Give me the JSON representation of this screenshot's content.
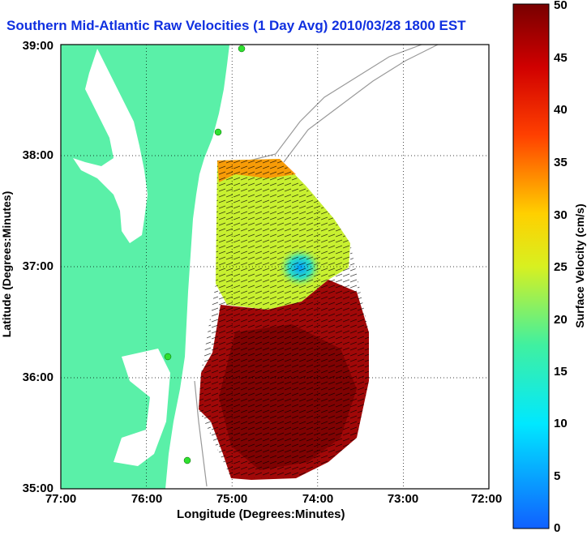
{
  "title": "Southern Mid-Atlantic Raw Velocities (1 Day Avg) 2010/03/28 1800 EST",
  "axes": {
    "xlabel": "Longitude (Degrees:Minutes)",
    "ylabel": "Latitude (Degrees:Minutes)",
    "xticks": [
      "77:00",
      "76:00",
      "75:00",
      "74:00",
      "73:00",
      "72:00"
    ],
    "yticks": [
      "39:00",
      "38:00",
      "37:00",
      "36:00",
      "35:00"
    ]
  },
  "colorbar": {
    "label": "Surface Velocity (cm/s)",
    "ticks": [
      "50",
      "45",
      "40",
      "35",
      "30",
      "25",
      "20",
      "15",
      "10",
      "5",
      "0"
    ],
    "min": 0,
    "max": 50
  },
  "colors": {
    "land": "#5af0a8",
    "water": "#ffffff",
    "title": "#1030e0"
  }
}
